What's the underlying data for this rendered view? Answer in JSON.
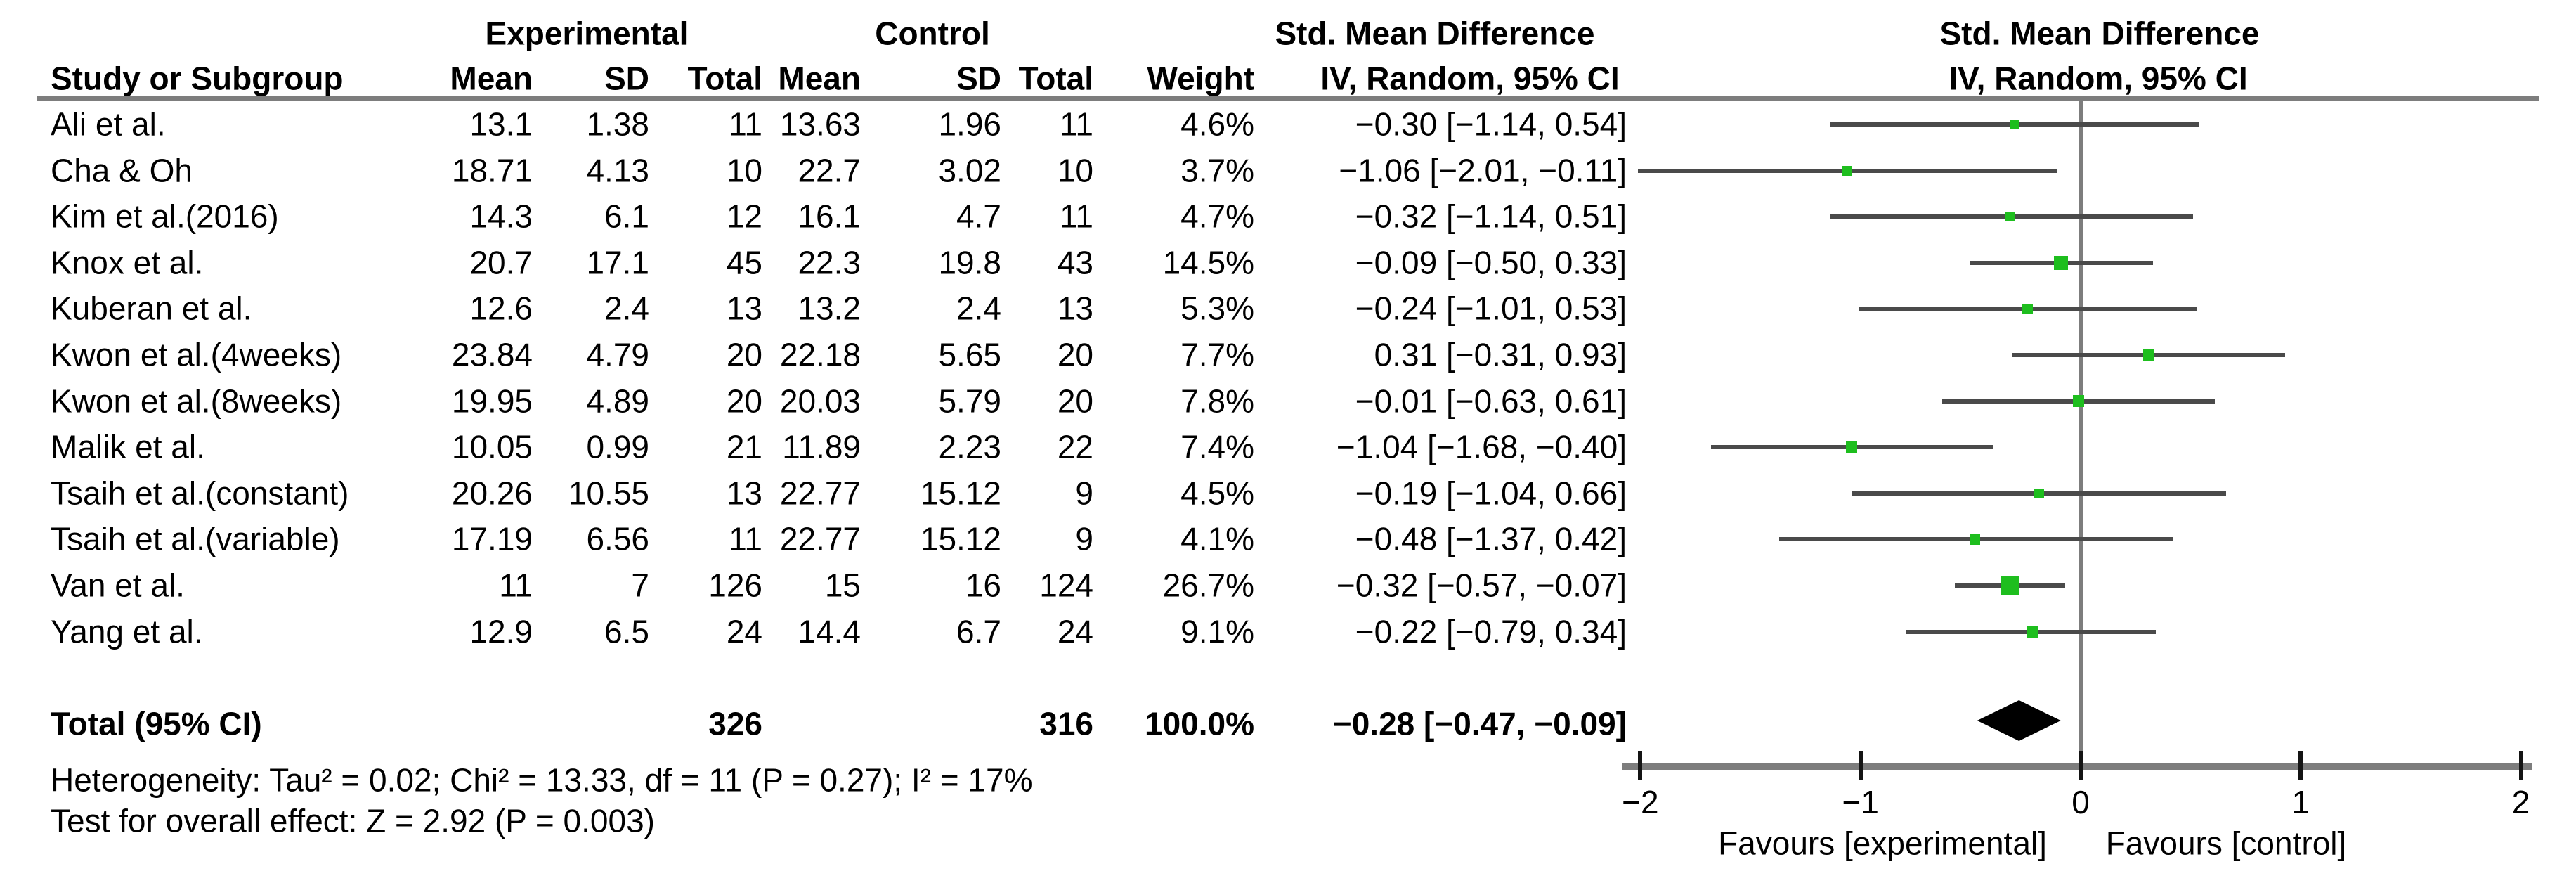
{
  "header": {
    "study_col": "Study or Subgroup",
    "groups": {
      "experimental": "Experimental",
      "control": "Control",
      "smd_text_col": "Std. Mean Difference",
      "smd_plot_col": "Std. Mean Difference"
    },
    "sub": {
      "mean": "Mean",
      "sd": "SD",
      "total": "Total",
      "weight": "Weight",
      "method_ci": "IV, Random, 95% CI"
    }
  },
  "chart_data": {
    "type": "forest",
    "effect_measure": "Std. Mean Difference",
    "method": "IV, Random, 95% CI",
    "x_axis": {
      "min": -2,
      "max": 2,
      "ticks": [
        -2,
        -1,
        0,
        1,
        2
      ],
      "label_left": "Favours [experimental]",
      "label_right": "Favours [control]"
    },
    "studies": [
      {
        "name": "Ali et al.",
        "mean_e": "13.1",
        "sd_e": "1.38",
        "n_e": "11",
        "mean_c": "13.63",
        "sd_c": "1.96",
        "n_c": "11",
        "weight": "4.6%",
        "weight_value": 4.6,
        "ci_text": "−0.30 [−1.14, 0.54]",
        "smd": -0.3,
        "ci_lo": -1.14,
        "ci_hi": 0.54
      },
      {
        "name": "Cha & Oh",
        "mean_e": "18.71",
        "sd_e": "4.13",
        "n_e": "10",
        "mean_c": "22.7",
        "sd_c": "3.02",
        "n_c": "10",
        "weight": "3.7%",
        "weight_value": 3.7,
        "ci_text": "−1.06 [−2.01, −0.11]",
        "smd": -1.06,
        "ci_lo": -2.01,
        "ci_hi": -0.11
      },
      {
        "name": "Kim et al.(2016)",
        "mean_e": "14.3",
        "sd_e": "6.1",
        "n_e": "12",
        "mean_c": "16.1",
        "sd_c": "4.7",
        "n_c": "11",
        "weight": "4.7%",
        "weight_value": 4.7,
        "ci_text": "−0.32 [−1.14, 0.51]",
        "smd": -0.32,
        "ci_lo": -1.14,
        "ci_hi": 0.51
      },
      {
        "name": "Knox et al.",
        "mean_e": "20.7",
        "sd_e": "17.1",
        "n_e": "45",
        "mean_c": "22.3",
        "sd_c": "19.8",
        "n_c": "43",
        "weight": "14.5%",
        "weight_value": 14.5,
        "ci_text": "−0.09 [−0.50, 0.33]",
        "smd": -0.09,
        "ci_lo": -0.5,
        "ci_hi": 0.33
      },
      {
        "name": "Kuberan et al.",
        "mean_e": "12.6",
        "sd_e": "2.4",
        "n_e": "13",
        "mean_c": "13.2",
        "sd_c": "2.4",
        "n_c": "13",
        "weight": "5.3%",
        "weight_value": 5.3,
        "ci_text": "−0.24 [−1.01, 0.53]",
        "smd": -0.24,
        "ci_lo": -1.01,
        "ci_hi": 0.53
      },
      {
        "name": "Kwon et al.(4weeks)",
        "mean_e": "23.84",
        "sd_e": "4.79",
        "n_e": "20",
        "mean_c": "22.18",
        "sd_c": "5.65",
        "n_c": "20",
        "weight": "7.7%",
        "weight_value": 7.7,
        "ci_text": "0.31 [−0.31, 0.93]",
        "smd": 0.31,
        "ci_lo": -0.31,
        "ci_hi": 0.93
      },
      {
        "name": "Kwon et al.(8weeks)",
        "mean_e": "19.95",
        "sd_e": "4.89",
        "n_e": "20",
        "mean_c": "20.03",
        "sd_c": "5.79",
        "n_c": "20",
        "weight": "7.8%",
        "weight_value": 7.8,
        "ci_text": "−0.01 [−0.63, 0.61]",
        "smd": -0.01,
        "ci_lo": -0.63,
        "ci_hi": 0.61
      },
      {
        "name": "Malik et al.",
        "mean_e": "10.05",
        "sd_e": "0.99",
        "n_e": "21",
        "mean_c": "11.89",
        "sd_c": "2.23",
        "n_c": "22",
        "weight": "7.4%",
        "weight_value": 7.4,
        "ci_text": "−1.04 [−1.68, −0.40]",
        "smd": -1.04,
        "ci_lo": -1.68,
        "ci_hi": -0.4
      },
      {
        "name": "Tsaih et al.(constant)",
        "mean_e": "20.26",
        "sd_e": "10.55",
        "n_e": "13",
        "mean_c": "22.77",
        "sd_c": "15.12",
        "n_c": "9",
        "weight": "4.5%",
        "weight_value": 4.5,
        "ci_text": "−0.19 [−1.04, 0.66]",
        "smd": -0.19,
        "ci_lo": -1.04,
        "ci_hi": 0.66
      },
      {
        "name": "Tsaih et al.(variable)",
        "mean_e": "17.19",
        "sd_e": "6.56",
        "n_e": "11",
        "mean_c": "22.77",
        "sd_c": "15.12",
        "n_c": "9",
        "weight": "4.1%",
        "weight_value": 4.1,
        "ci_text": "−0.48 [−1.37, 0.42]",
        "smd": -0.48,
        "ci_lo": -1.37,
        "ci_hi": 0.42
      },
      {
        "name": "Van et al.",
        "mean_e": "11",
        "sd_e": "7",
        "n_e": "126",
        "mean_c": "15",
        "sd_c": "16",
        "n_c": "124",
        "weight": "26.7%",
        "weight_value": 26.7,
        "ci_text": "−0.32 [−0.57, −0.07]",
        "smd": -0.32,
        "ci_lo": -0.57,
        "ci_hi": -0.07
      },
      {
        "name": "Yang et al.",
        "mean_e": "12.9",
        "sd_e": "6.5",
        "n_e": "24",
        "mean_c": "14.4",
        "sd_c": "6.7",
        "n_c": "24",
        "weight": "9.1%",
        "weight_value": 9.1,
        "ci_text": "−0.22 [−0.79, 0.34]",
        "smd": -0.22,
        "ci_lo": -0.79,
        "ci_hi": 0.34
      }
    ],
    "total": {
      "label": "Total (95% CI)",
      "n_e": "326",
      "n_c": "316",
      "weight": "100.0%",
      "ci_text": "−0.28 [−0.47, −0.09]",
      "smd": -0.28,
      "ci_lo": -0.47,
      "ci_hi": -0.09
    },
    "heterogeneity": "Heterogeneity: Tau² = 0.02; Chi² = 13.33, df = 11 (P = 0.27); I² = 17%",
    "overall_effect": "Test for overall effect: Z = 2.92 (P = 0.003)"
  },
  "colors": {
    "marker_green": "#1ebe1e",
    "axis_gray": "#7d7d7d",
    "ci_line": "#4a4a4a",
    "diamond": "#000000"
  }
}
